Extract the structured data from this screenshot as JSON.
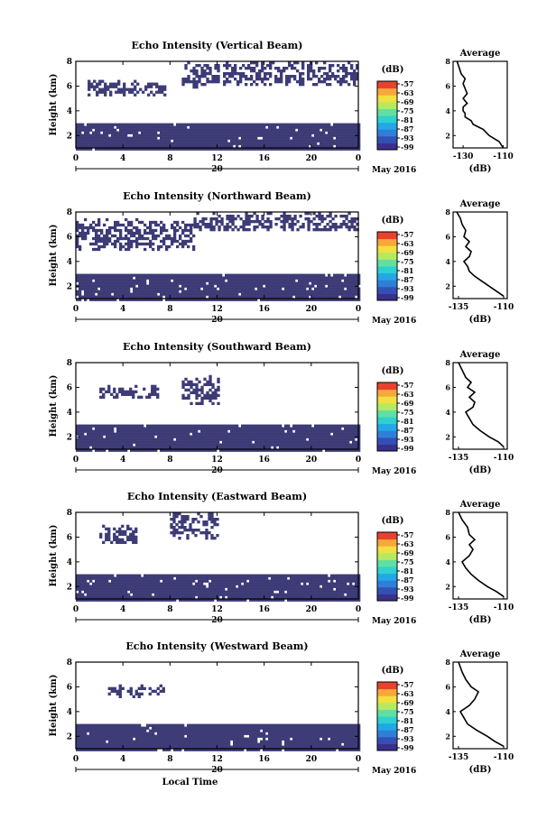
{
  "figure": {
    "xlabel": "Local Time",
    "date_label": "May 2016",
    "day_label": "20",
    "colorbar_unit": "(dB)",
    "avg_title": "Average",
    "avg_xlabel": "(dB)",
    "ylabel": "Height (km)"
  },
  "colors": {
    "echo_fill": "#3d3b76",
    "colorbar": [
      "#3b2f8c",
      "#3351b5",
      "#2f7fd8",
      "#22a8e6",
      "#2fd0d0",
      "#60e0a0",
      "#b5ea60",
      "#f0e040",
      "#f7a83a",
      "#e8422e"
    ]
  },
  "chart_data": [
    {
      "type": "heatmap",
      "title": "Echo Intensity (Vertical Beam)",
      "ylabel": "Height (km)",
      "xlabel": "",
      "x_ticks": [
        "0",
        "4",
        "8",
        "12",
        "16",
        "20",
        "0"
      ],
      "xlim": [
        0,
        24
      ],
      "y_ticks": [
        "2",
        "4",
        "6",
        "8"
      ],
      "ylim": [
        1,
        8
      ],
      "colorbar": {
        "label": "(dB)",
        "ticks": [
          "-57",
          "-63",
          "-69",
          "-75",
          "-81",
          "-87",
          "-93",
          "-99"
        ]
      },
      "echo_layers": [
        {
          "x": [
            0,
            24
          ],
          "y": [
            1,
            3
          ]
        },
        {
          "x": [
            1,
            7.5
          ],
          "y": [
            5.3,
            6.5
          ]
        },
        {
          "x": [
            12.5,
            24
          ],
          "y": [
            6.2,
            8
          ]
        },
        {
          "x": [
            9,
            12
          ],
          "y": [
            6,
            8
          ]
        }
      ],
      "average": {
        "title": "Average",
        "xlabel": "(dB)",
        "x_ticks": [
          "-130",
          "-110"
        ],
        "xlim": [
          -135,
          -108
        ],
        "y_ticks": [
          "2",
          "4",
          "6",
          "8"
        ],
        "ylim": [
          1,
          8
        ],
        "profile": [
          [
            -110,
            1
          ],
          [
            -112,
            1.5
          ],
          [
            -117,
            2.0
          ],
          [
            -120,
            2.5
          ],
          [
            -125,
            2.9
          ],
          [
            -126,
            3.2
          ],
          [
            -129,
            3.5
          ],
          [
            -129,
            3.8
          ],
          [
            -130,
            4.0
          ],
          [
            -130,
            4.3
          ],
          [
            -128,
            4.6
          ],
          [
            -130,
            5.0
          ],
          [
            -128,
            5.4
          ],
          [
            -129,
            5.8
          ],
          [
            -130,
            6.2
          ],
          [
            -129,
            6.6
          ],
          [
            -131,
            7.0
          ],
          [
            -132,
            7.5
          ],
          [
            -133,
            8
          ]
        ]
      }
    },
    {
      "type": "heatmap",
      "title": "Echo Intensity (Northward Beam)",
      "ylabel": "Height (km)",
      "xlabel": "",
      "x_ticks": [
        "0",
        "4",
        "8",
        "12",
        "16",
        "20",
        "0"
      ],
      "xlim": [
        0,
        24
      ],
      "y_ticks": [
        "2",
        "4",
        "6",
        "8"
      ],
      "ylim": [
        1,
        8
      ],
      "colorbar": {
        "label": "(dB)",
        "ticks": [
          "-57",
          "-63",
          "-69",
          "-75",
          "-81",
          "-87",
          "-93",
          "-99"
        ]
      },
      "echo_layers": [
        {
          "x": [
            0,
            24
          ],
          "y": [
            1,
            3
          ]
        },
        {
          "x": [
            0,
            10
          ],
          "y": [
            5.0,
            7.5
          ]
        },
        {
          "x": [
            10,
            24
          ],
          "y": [
            6.5,
            8
          ]
        }
      ],
      "average": {
        "title": "Average",
        "xlabel": "(dB)",
        "x_ticks": [
          "-135",
          "-110"
        ],
        "xlim": [
          -138,
          -108
        ],
        "y_ticks": [
          "2",
          "4",
          "6",
          "8"
        ],
        "ylim": [
          1,
          8
        ],
        "profile": [
          [
            -110,
            1.2
          ],
          [
            -114,
            1.6
          ],
          [
            -118,
            2.0
          ],
          [
            -122,
            2.4
          ],
          [
            -126,
            2.8
          ],
          [
            -129,
            3.2
          ],
          [
            -130,
            3.6
          ],
          [
            -132,
            4.0
          ],
          [
            -129,
            4.4
          ],
          [
            -128,
            4.8
          ],
          [
            -131,
            5.2
          ],
          [
            -129,
            5.6
          ],
          [
            -132,
            6.0
          ],
          [
            -131,
            6.5
          ],
          [
            -133,
            7.0
          ],
          [
            -134,
            7.5
          ],
          [
            -136,
            8
          ]
        ]
      }
    },
    {
      "type": "heatmap",
      "title": "Echo Intensity (Southward Beam)",
      "ylabel": "Height (km)",
      "xlabel": "",
      "x_ticks": [
        "0",
        "4",
        "8",
        "12",
        "16",
        "20",
        "0"
      ],
      "xlim": [
        0,
        24
      ],
      "y_ticks": [
        "2",
        "4",
        "6",
        "8"
      ],
      "ylim": [
        1,
        8
      ],
      "colorbar": {
        "label": "(dB)",
        "ticks": [
          "-57",
          "-63",
          "-69",
          "-75",
          "-81",
          "-87",
          "-93",
          "-99"
        ]
      },
      "echo_layers": [
        {
          "x": [
            0,
            24
          ],
          "y": [
            1,
            3
          ]
        },
        {
          "x": [
            2,
            7
          ],
          "y": [
            5.2,
            6.2
          ]
        },
        {
          "x": [
            9,
            12
          ],
          "y": [
            4.8,
            7
          ]
        }
      ],
      "average": {
        "title": "Average",
        "xlabel": "(dB)",
        "x_ticks": [
          "-135",
          "-110"
        ],
        "xlim": [
          -138,
          -108
        ],
        "y_ticks": [
          "2",
          "4",
          "6",
          "8"
        ],
        "ylim": [
          1,
          8
        ],
        "profile": [
          [
            -110,
            1.2
          ],
          [
            -113,
            1.6
          ],
          [
            -118,
            2.0
          ],
          [
            -123,
            2.5
          ],
          [
            -127,
            3.0
          ],
          [
            -129,
            3.5
          ],
          [
            -131,
            4.0
          ],
          [
            -127,
            4.4
          ],
          [
            -126,
            4.8
          ],
          [
            -129,
            5.2
          ],
          [
            -126,
            5.6
          ],
          [
            -130,
            6.0
          ],
          [
            -128,
            6.4
          ],
          [
            -131,
            6.8
          ],
          [
            -133,
            7.4
          ],
          [
            -135,
            8
          ]
        ]
      }
    },
    {
      "type": "heatmap",
      "title": "Echo Intensity (Eastward Beam)",
      "ylabel": "Height (km)",
      "xlabel": "",
      "x_ticks": [
        "0",
        "4",
        "8",
        "12",
        "16",
        "20",
        "0"
      ],
      "xlim": [
        0,
        24
      ],
      "y_ticks": [
        "2",
        "4",
        "6",
        "8"
      ],
      "ylim": [
        1,
        8
      ],
      "colorbar": {
        "label": "(dB)",
        "ticks": [
          "-57",
          "-63",
          "-69",
          "-75",
          "-81",
          "-87",
          "-93",
          "-99"
        ]
      },
      "echo_layers": [
        {
          "x": [
            0,
            24
          ],
          "y": [
            1,
            3
          ]
        },
        {
          "x": [
            2,
            5
          ],
          "y": [
            5.5,
            7
          ]
        },
        {
          "x": [
            8,
            12
          ],
          "y": [
            6,
            8
          ]
        }
      ],
      "average": {
        "title": "Average",
        "xlabel": "(dB)",
        "x_ticks": [
          "-135",
          "-110"
        ],
        "xlim": [
          -138,
          -108
        ],
        "y_ticks": [
          "2",
          "4",
          "6",
          "8"
        ],
        "ylim": [
          1,
          8
        ],
        "profile": [
          [
            -110,
            1.2
          ],
          [
            -114,
            1.6
          ],
          [
            -119,
            2.0
          ],
          [
            -124,
            2.5
          ],
          [
            -128,
            3.0
          ],
          [
            -131,
            3.5
          ],
          [
            -133,
            4.0
          ],
          [
            -129,
            4.5
          ],
          [
            -127,
            5.0
          ],
          [
            -129,
            5.4
          ],
          [
            -126,
            5.8
          ],
          [
            -129,
            6.2
          ],
          [
            -130,
            6.8
          ],
          [
            -133,
            7.4
          ],
          [
            -135,
            8
          ]
        ]
      }
    },
    {
      "type": "heatmap",
      "title": "Echo Intensity (Westward Beam)",
      "ylabel": "Height (km)",
      "xlabel": "Local Time",
      "x_ticks": [
        "0",
        "4",
        "8",
        "12",
        "16",
        "20",
        "0"
      ],
      "xlim": [
        0,
        24
      ],
      "y_ticks": [
        "2",
        "4",
        "6",
        "8"
      ],
      "ylim": [
        1,
        8
      ],
      "colorbar": {
        "label": "(dB)",
        "ticks": [
          "-57",
          "-63",
          "-69",
          "-75",
          "-81",
          "-87",
          "-93",
          "-99"
        ]
      },
      "echo_layers": [
        {
          "x": [
            0,
            24
          ],
          "y": [
            1,
            3
          ]
        },
        {
          "x": [
            2.5,
            7.5
          ],
          "y": [
            5.3,
            6.2
          ]
        }
      ],
      "average": {
        "title": "Average",
        "xlabel": "(dB)",
        "x_ticks": [
          "-135",
          "-110"
        ],
        "xlim": [
          -138,
          -108
        ],
        "y_ticks": [
          "2",
          "4",
          "6",
          "8"
        ],
        "ylim": [
          1,
          8
        ],
        "profile": [
          [
            -110,
            1.2
          ],
          [
            -115,
            1.6
          ],
          [
            -119,
            2.0
          ],
          [
            -125,
            2.5
          ],
          [
            -130,
            3.0
          ],
          [
            -132,
            3.5
          ],
          [
            -134,
            4.0
          ],
          [
            -129,
            4.5
          ],
          [
            -126,
            5.0
          ],
          [
            -124,
            5.6
          ],
          [
            -128,
            6.0
          ],
          [
            -131,
            6.6
          ],
          [
            -133,
            7.2
          ],
          [
            -135,
            8
          ]
        ]
      }
    }
  ]
}
